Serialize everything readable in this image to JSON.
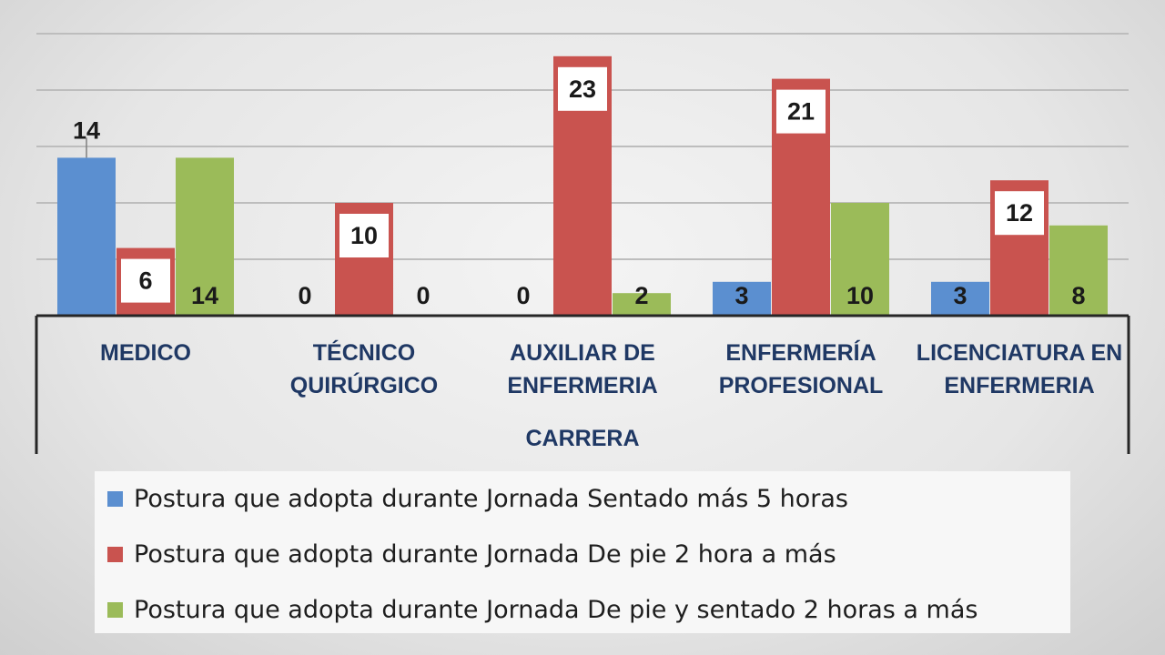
{
  "chart_data": {
    "type": "bar",
    "categories": [
      "MEDICO",
      "TÉCNICO QUIRÚRGICO",
      "AUXILIAR DE ENFERMERIA",
      "ENFERMERÍA PROFESIONAL",
      "LICENCIATURA EN ENFERMERIA"
    ],
    "category_lines": [
      [
        "MEDICO"
      ],
      [
        "TÉCNICO",
        "QUIRÚRGICO"
      ],
      [
        "AUXILIAR DE",
        "ENFERMERIA"
      ],
      [
        "ENFERMERÍA",
        "PROFESIONAL"
      ],
      [
        "LICENCIATURA EN",
        "ENFERMERIA"
      ]
    ],
    "series": [
      {
        "name": "Postura que adopta durante Jornada Sentado más 5 horas",
        "values": [
          14,
          0,
          0,
          3,
          3
        ],
        "color": "#5b8fd0"
      },
      {
        "name": "Postura que adopta durante Jornada De pie 2 hora a más",
        "values": [
          6,
          10,
          23,
          21,
          12
        ],
        "color": "#c9534f"
      },
      {
        "name": "Postura que adopta durante Jornada De pie y sentado 2 horas a más",
        "values": [
          14,
          0,
          2,
          10,
          8
        ],
        "color": "#9bbb59"
      }
    ],
    "xlabel": "CARRERA",
    "ylabel": "",
    "ylim": [
      0,
      25
    ],
    "grid": true,
    "legend_position": "bottom",
    "data_labels": true
  }
}
